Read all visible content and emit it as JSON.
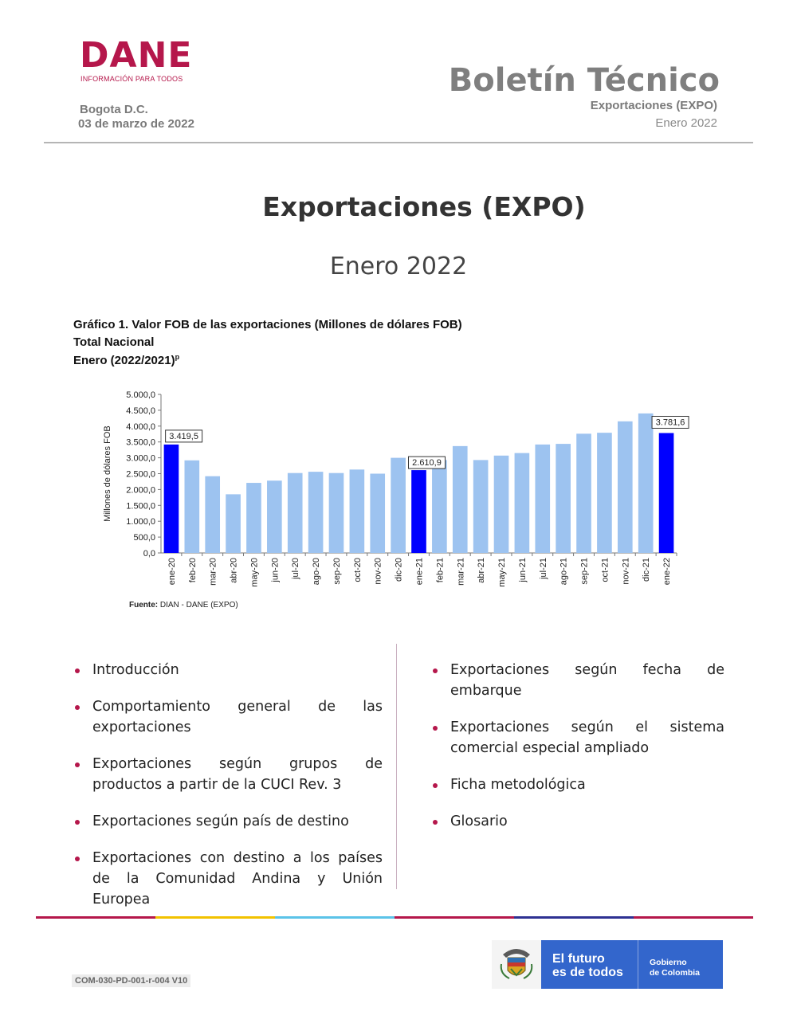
{
  "header": {
    "logo_word": "DANE",
    "logo_tagline": "INFORMACIÓN PARA TODOS",
    "location": "Bogota D.C.",
    "publish_date": "03 de marzo de 2022",
    "bulletin_title": "Boletín Técnico",
    "bulletin_subject": "Exportaciones (EXPO)",
    "bulletin_period": "Enero 2022"
  },
  "cover": {
    "title": "Exportaciones (EXPO)",
    "period": "Enero 2022"
  },
  "chart_caption": {
    "line1": "Gráfico 1. Valor FOB de las exportaciones (Millones de dólares FOB)",
    "line2": "Total Nacional",
    "line3": "Enero (2022/2021)",
    "line3_sup": "p"
  },
  "chart_data": {
    "type": "bar",
    "title": "",
    "xlabel": "",
    "ylabel": "Millones de dólares FOB",
    "ylim": [
      0,
      5000
    ],
    "yticks": [
      "0,0",
      "500,0",
      "1.000,0",
      "1.500,0",
      "2.000,0",
      "2.500,0",
      "3.000,0",
      "3.500,0",
      "4.000,0",
      "4.500,0",
      "5.000,0"
    ],
    "categories": [
      "ene-20",
      "feb-20",
      "mar-20",
      "abr-20",
      "may-20",
      "jun-20",
      "jul-20",
      "ago-20",
      "sep-20",
      "oct-20",
      "nov-20",
      "dic-20",
      "ene-21",
      "feb-21",
      "mar-21",
      "abr-21",
      "may-21",
      "jun-21",
      "jul-21",
      "ago-21",
      "sep-21",
      "oct-21",
      "nov-21",
      "dic-21",
      "ene-22"
    ],
    "values": [
      3419.5,
      2920,
      2420,
      1850,
      2210,
      2280,
      2520,
      2560,
      2520,
      2630,
      2500,
      3000,
      2610.9,
      2930,
      3370,
      2930,
      3070,
      3150,
      3420,
      3440,
      3760,
      3790,
      4150,
      4400,
      3781.6
    ],
    "highlight_indices": [
      0,
      12,
      24
    ],
    "data_labels": [
      {
        "index": 0,
        "text": "3.419,5"
      },
      {
        "index": 12,
        "text": "2.610,9"
      },
      {
        "index": 24,
        "text": "3.781,6"
      }
    ],
    "colors": {
      "highlight": "#0000ff",
      "normal": "#9dc3f0"
    },
    "grid": false,
    "legend": "none"
  },
  "source": {
    "label": "Fuente:",
    "text": "DIAN - DANE (EXPO)"
  },
  "toc": {
    "left": [
      "Introducción",
      "Comportamiento general de las exportaciones",
      "Exportaciones según grupos de productos a partir de la CUCI Rev. 3",
      "Exportaciones según país de destino",
      "Exportaciones con destino a los países de la Comunidad Andina y Unión Europea"
    ],
    "right": [
      "Exportaciones según fecha de embarque",
      "Exportaciones según el sistema comercial especial ampliado",
      "Ficha metodológica",
      "Glosario"
    ]
  },
  "footer": {
    "doc_code": "COM-030-PD-001-r-004 V10",
    "slogan_line1": "El futuro",
    "slogan_line2": "es de todos",
    "gov_line1": "Gobierno",
    "gov_line2": "de Colombia",
    "rule_colors": [
      "#b5174b",
      "#f2c200",
      "#5bc3e8",
      "#b5174b",
      "#2e3192",
      "#b5174b"
    ]
  }
}
